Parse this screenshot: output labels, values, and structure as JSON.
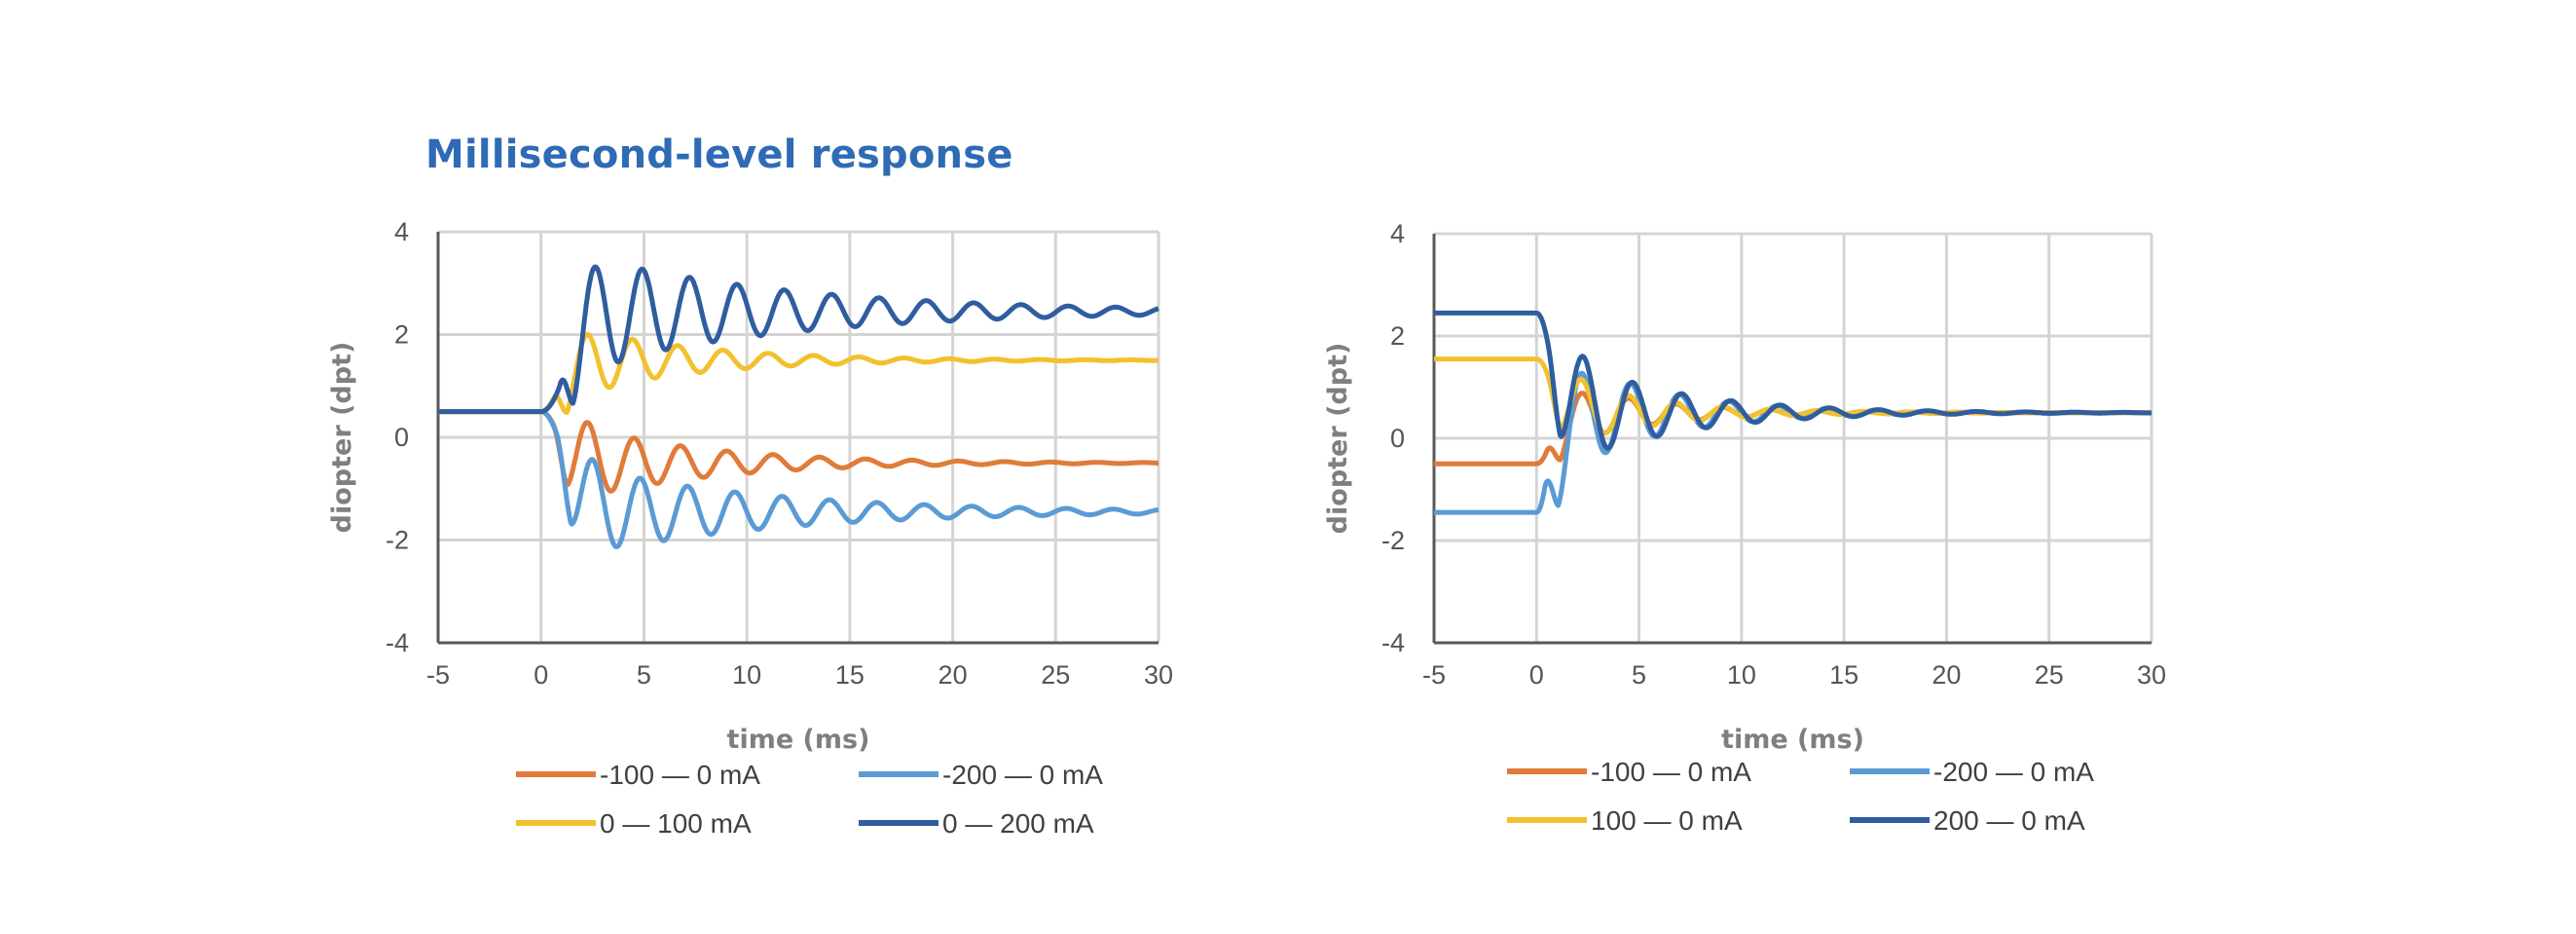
{
  "page": {
    "title": "Millisecond-level response"
  },
  "chart_data": [
    {
      "type": "line",
      "id": "on-response",
      "title": "",
      "xlabel": "time (ms)",
      "ylabel": "diopter (dpt)",
      "xlim": [
        -5,
        30
      ],
      "ylim": [
        -4,
        4
      ],
      "xticks": [
        "-5",
        "0",
        "5",
        "10",
        "15",
        "20",
        "25",
        "30"
      ],
      "yticks": [
        "-4",
        "-2",
        "0",
        "2",
        "4"
      ],
      "grid": true,
      "legend_position": "bottom",
      "series": [
        {
          "name": "-100 — 0 mA",
          "color": "#e07b39",
          "start": 0.5,
          "end": -0.5,
          "amp": 0.9,
          "decay": 0.16,
          "period": 2.25,
          "delay": 0.6
        },
        {
          "name": "-200 — 0 mA",
          "color": "#5b9bd5",
          "start": 0.5,
          "end": -1.45,
          "amp": 1.0,
          "decay": 0.11,
          "period": 2.3,
          "delay": 0.8
        },
        {
          "name": "0 — 100 mA",
          "color": "#f2c12e",
          "start": 0.5,
          "end": 1.5,
          "amp": 0.8,
          "decay": 0.17,
          "period": 2.2,
          "delay": 0.6
        },
        {
          "name": "0 — 200 mA",
          "color": "#2f5d9f",
          "start": 0.5,
          "end": 2.45,
          "amp": 1.25,
          "decay": 0.1,
          "period": 2.3,
          "delay": 0.9
        }
      ]
    },
    {
      "type": "line",
      "id": "off-response",
      "title": "",
      "xlabel": "time (ms)",
      "ylabel": "diopter (dpt)",
      "xlim": [
        -5,
        30
      ],
      "ylim": [
        -4,
        4
      ],
      "xticks": [
        "-5",
        "0",
        "5",
        "10",
        "15",
        "20",
        "25",
        "30"
      ],
      "yticks": [
        "-4",
        "-2",
        "0",
        "2",
        "4"
      ],
      "grid": true,
      "legend_position": "bottom",
      "series": [
        {
          "name": "-100 — 0 mA",
          "color": "#e07b39",
          "start": -0.5,
          "end": 0.5,
          "amp": 0.7,
          "decay": 0.22,
          "period": 2.3,
          "delay": 0.5
        },
        {
          "name": "-200 — 0 mA",
          "color": "#5b9bd5",
          "start": -1.45,
          "end": 0.5,
          "amp": 1.35,
          "decay": 0.2,
          "period": 2.4,
          "delay": 0.4
        },
        {
          "name": "100 — 0 mA",
          "color": "#f2c12e",
          "start": 1.55,
          "end": 0.5,
          "amp": 0.8,
          "decay": 0.22,
          "period": 2.3,
          "delay": 0.5
        },
        {
          "name": "200 — 0 mA",
          "color": "#2f5d9f",
          "start": 2.45,
          "end": 0.5,
          "amp": 1.3,
          "decay": 0.19,
          "period": 2.4,
          "delay": 0.5
        }
      ]
    }
  ]
}
